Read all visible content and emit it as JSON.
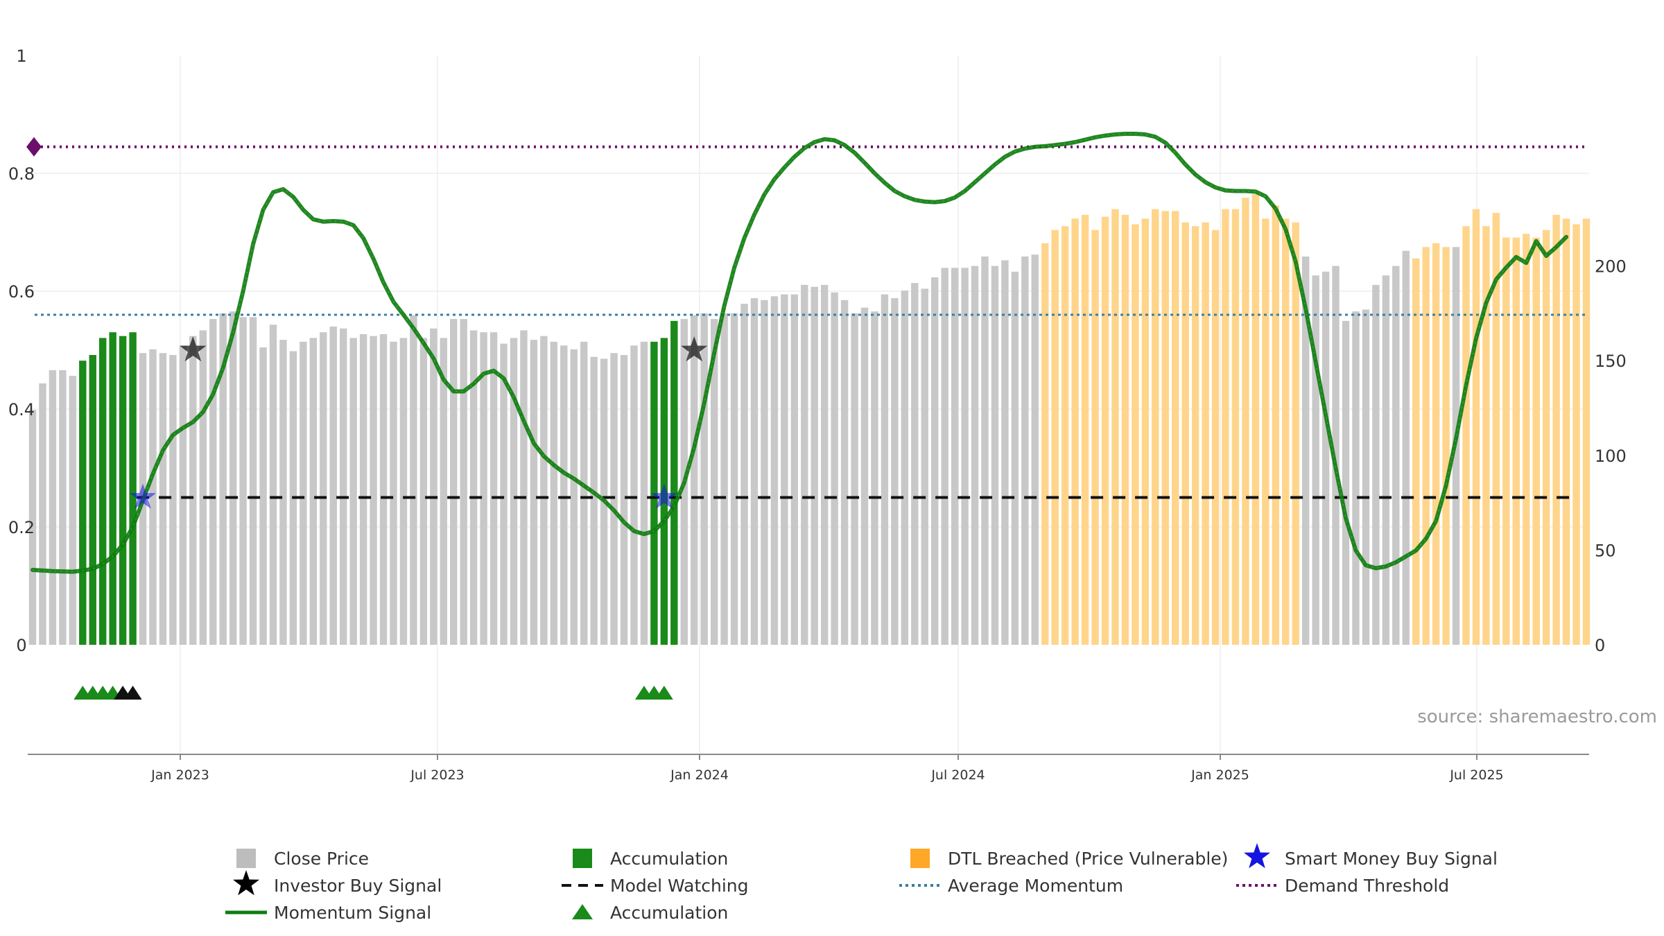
{
  "chart_data": {
    "type": "bar",
    "title": "",
    "xlabel": "",
    "ylabel": "",
    "x_ticks": [
      "Jan 2023",
      "Jul 2023",
      "Jan 2024",
      "Jul 2024",
      "Jan 2025",
      "Jul 2025"
    ],
    "y_left_ticks": [
      "0",
      "0.2",
      "0.4",
      "0.6",
      "0.8",
      "1"
    ],
    "y_right_ticks": [
      "0",
      "50",
      "100",
      "150",
      "200"
    ],
    "y_left_range": [
      0,
      1
    ],
    "y_right_range": [
      0,
      250
    ],
    "source": "source: sharemaestro.com",
    "colors": {
      "close_price": "#c8c8c8",
      "accumulation": "#1a8a1a",
      "dtl_breached": "#ffd58c",
      "momentum": "#0e7d0e",
      "average_momentum": "#3a7fa0",
      "model_watching": "#111111",
      "demand_threshold": "#6b0f6b",
      "smart_money": "#1515e0"
    },
    "bars": [
      124,
      138,
      145,
      145,
      142,
      150,
      153,
      162,
      165,
      163,
      165,
      154,
      156,
      154,
      153,
      158,
      163,
      166,
      172,
      175,
      176,
      173,
      173,
      157,
      169,
      161,
      155,
      160,
      162,
      165,
      168,
      167,
      162,
      164,
      163,
      164,
      160,
      162,
      174,
      162,
      167,
      162,
      172,
      172,
      166,
      165,
      165,
      159,
      162,
      166,
      161,
      163,
      160,
      158,
      156,
      160,
      152,
      151,
      154,
      153,
      158,
      160,
      160,
      162,
      171,
      172,
      174,
      175,
      172,
      175,
      175,
      180,
      183,
      182,
      184,
      185,
      185,
      190,
      189,
      190,
      186,
      182,
      175,
      178,
      176,
      185,
      183,
      187,
      191,
      188,
      194,
      199,
      199,
      199,
      200,
      205,
      200,
      203,
      197,
      205,
      206,
      212,
      219,
      221,
      225,
      227,
      219,
      226,
      230,
      227,
      222,
      225,
      230,
      229,
      229,
      223,
      221,
      223,
      219,
      230,
      230,
      236,
      238,
      225,
      232,
      225,
      223,
      205,
      195,
      197,
      200,
      171,
      176,
      177,
      190,
      195,
      200,
      208,
      204,
      210,
      212,
      210,
      210,
      221,
      230,
      221,
      228,
      215,
      215,
      217,
      215,
      219,
      227,
      225,
      222,
      225
    ],
    "bar_categories": [
      "close",
      "close",
      "close",
      "close",
      "close",
      "accumulation",
      "accumulation",
      "accumulation",
      "accumulation",
      "accumulation",
      "accumulation",
      "close",
      "close",
      "close",
      "close",
      "close",
      "close",
      "close",
      "close",
      "close",
      "close",
      "close",
      "close",
      "close",
      "close",
      "close",
      "close",
      "close",
      "close",
      "close",
      "close",
      "close",
      "close",
      "close",
      "close",
      "close",
      "close",
      "close",
      "close",
      "close",
      "close",
      "close",
      "close",
      "close",
      "close",
      "close",
      "close",
      "close",
      "close",
      "close",
      "close",
      "close",
      "close",
      "close",
      "close",
      "close",
      "close",
      "close",
      "close",
      "close",
      "close",
      "close",
      "accumulation",
      "accumulation",
      "accumulation",
      "close",
      "close",
      "close",
      "close",
      "close",
      "close",
      "close",
      "close",
      "close",
      "close",
      "close",
      "close",
      "close",
      "close",
      "close",
      "close",
      "close",
      "close",
      "close",
      "close",
      "close",
      "close",
      "close",
      "close",
      "close",
      "close",
      "close",
      "close",
      "close",
      "close",
      "close",
      "close",
      "close",
      "close",
      "close",
      "close",
      "close",
      "close",
      "close",
      "close",
      "close",
      "close",
      "close",
      "close",
      "close",
      "close",
      "close",
      "close",
      "close",
      "close",
      "close",
      "close",
      "close",
      "close",
      "close",
      "close",
      "close",
      "close",
      "close",
      "close",
      "close",
      "close",
      "close",
      "close",
      "close",
      "close",
      "close",
      "close",
      "close",
      "close",
      "close",
      "close",
      "close",
      "close",
      "close",
      "close",
      "close",
      "close",
      "close",
      "close",
      "close",
      "close",
      "close",
      "close",
      "close",
      "close",
      "close",
      "close",
      "close",
      "close",
      "close"
    ],
    "dtl_ranges": [
      [
        101,
        126
      ],
      [
        138,
        141
      ],
      [
        143,
        155
      ]
    ],
    "momentum": [
      [
        0,
        0.127
      ],
      [
        2,
        0.125
      ],
      [
        4,
        0.124
      ],
      [
        5,
        0.126
      ],
      [
        6,
        0.129
      ],
      [
        7,
        0.137
      ],
      [
        8,
        0.15
      ],
      [
        9,
        0.17
      ],
      [
        10,
        0.2
      ],
      [
        11,
        0.245
      ],
      [
        12,
        0.29
      ],
      [
        13,
        0.33
      ],
      [
        14,
        0.356
      ],
      [
        15,
        0.368
      ],
      [
        16,
        0.378
      ],
      [
        17,
        0.395
      ],
      [
        18,
        0.425
      ],
      [
        19,
        0.47
      ],
      [
        20,
        0.53
      ],
      [
        21,
        0.6
      ],
      [
        22,
        0.68
      ],
      [
        23,
        0.738
      ],
      [
        24,
        0.768
      ],
      [
        25,
        0.773
      ],
      [
        26,
        0.76
      ],
      [
        27,
        0.738
      ],
      [
        28,
        0.722
      ],
      [
        29,
        0.718
      ],
      [
        30,
        0.719
      ],
      [
        31,
        0.718
      ],
      [
        32,
        0.712
      ],
      [
        33,
        0.69
      ],
      [
        34,
        0.655
      ],
      [
        35,
        0.615
      ],
      [
        36,
        0.582
      ],
      [
        37,
        0.56
      ],
      [
        38,
        0.537
      ],
      [
        39,
        0.512
      ],
      [
        40,
        0.486
      ],
      [
        41,
        0.45
      ],
      [
        42,
        0.43
      ],
      [
        43,
        0.43
      ],
      [
        44,
        0.443
      ],
      [
        45,
        0.46
      ],
      [
        46,
        0.465
      ],
      [
        47,
        0.452
      ],
      [
        48,
        0.42
      ],
      [
        49,
        0.38
      ],
      [
        50,
        0.342
      ],
      [
        51,
        0.32
      ],
      [
        52,
        0.305
      ],
      [
        53,
        0.292
      ],
      [
        54,
        0.282
      ],
      [
        55,
        0.27
      ],
      [
        56,
        0.258
      ],
      [
        57,
        0.245
      ],
      [
        58,
        0.228
      ],
      [
        59,
        0.208
      ],
      [
        60,
        0.193
      ],
      [
        61,
        0.188
      ],
      [
        62,
        0.193
      ],
      [
        63,
        0.21
      ],
      [
        64,
        0.235
      ],
      [
        65,
        0.275
      ],
      [
        66,
        0.335
      ],
      [
        67,
        0.41
      ],
      [
        68,
        0.495
      ],
      [
        69,
        0.575
      ],
      [
        70,
        0.64
      ],
      [
        71,
        0.69
      ],
      [
        72,
        0.73
      ],
      [
        73,
        0.764
      ],
      [
        74,
        0.79
      ],
      [
        75,
        0.81
      ],
      [
        76,
        0.828
      ],
      [
        77,
        0.843
      ],
      [
        78,
        0.853
      ],
      [
        79,
        0.858
      ],
      [
        80,
        0.856
      ],
      [
        81,
        0.848
      ],
      [
        82,
        0.835
      ],
      [
        83,
        0.818
      ],
      [
        84,
        0.8
      ],
      [
        85,
        0.784
      ],
      [
        86,
        0.77
      ],
      [
        87,
        0.761
      ],
      [
        88,
        0.755
      ],
      [
        89,
        0.752
      ],
      [
        90,
        0.751
      ],
      [
        91,
        0.753
      ],
      [
        92,
        0.759
      ],
      [
        93,
        0.77
      ],
      [
        94,
        0.785
      ],
      [
        95,
        0.8
      ],
      [
        96,
        0.815
      ],
      [
        97,
        0.828
      ],
      [
        98,
        0.837
      ],
      [
        99,
        0.842
      ],
      [
        100,
        0.845
      ],
      [
        101,
        0.846
      ],
      [
        102,
        0.848
      ],
      [
        103,
        0.85
      ],
      [
        104,
        0.853
      ],
      [
        105,
        0.857
      ],
      [
        106,
        0.861
      ],
      [
        107,
        0.864
      ],
      [
        108,
        0.866
      ],
      [
        109,
        0.867
      ],
      [
        110,
        0.867
      ],
      [
        111,
        0.866
      ],
      [
        112,
        0.862
      ],
      [
        113,
        0.852
      ],
      [
        114,
        0.835
      ],
      [
        115,
        0.815
      ],
      [
        116,
        0.798
      ],
      [
        117,
        0.785
      ],
      [
        118,
        0.776
      ],
      [
        119,
        0.771
      ],
      [
        120,
        0.77
      ],
      [
        121,
        0.77
      ],
      [
        122,
        0.769
      ],
      [
        123,
        0.761
      ],
      [
        124,
        0.74
      ],
      [
        125,
        0.705
      ],
      [
        126,
        0.65
      ],
      [
        127,
        0.57
      ],
      [
        128,
        0.48
      ],
      [
        129,
        0.39
      ],
      [
        130,
        0.3
      ],
      [
        131,
        0.215
      ],
      [
        132,
        0.16
      ],
      [
        133,
        0.135
      ],
      [
        134,
        0.13
      ],
      [
        135,
        0.133
      ],
      [
        136,
        0.14
      ],
      [
        137,
        0.15
      ],
      [
        138,
        0.16
      ],
      [
        139,
        0.18
      ],
      [
        140,
        0.21
      ],
      [
        141,
        0.27
      ],
      [
        142,
        0.35
      ],
      [
        143,
        0.44
      ],
      [
        144,
        0.52
      ],
      [
        145,
        0.58
      ],
      [
        146,
        0.62
      ],
      [
        147,
        0.64
      ],
      [
        148,
        0.658
      ],
      [
        149,
        0.648
      ],
      [
        150,
        0.685
      ],
      [
        151,
        0.66
      ],
      [
        152,
        0.675
      ],
      [
        153,
        0.692
      ]
    ],
    "average_momentum": 0.56,
    "model_watching": 0.25,
    "model_watching_start": 9,
    "demand_threshold": 0.845,
    "investor_buy_signals": [
      [
        16,
        0.5
      ],
      [
        66,
        0.5
      ]
    ],
    "smart_money_buy_signals": [
      [
        11,
        0.25
      ],
      [
        63,
        0.25
      ]
    ],
    "accumulation_markers_green": [
      5,
      6,
      7,
      8,
      61,
      62,
      63
    ],
    "accumulation_markers_black": [
      9,
      10
    ],
    "legend": [
      {
        "key": "close_price",
        "label": "Close Price"
      },
      {
        "key": "accumulation_bar",
        "label": "Accumulation"
      },
      {
        "key": "dtl",
        "label": "DTL Breached (Price Vulnerable)"
      },
      {
        "key": "smart_money",
        "label": "Smart Money Buy Signal"
      },
      {
        "key": "investor",
        "label": "Investor Buy Signal"
      },
      {
        "key": "model_watching",
        "label": "Model Watching"
      },
      {
        "key": "average_momentum",
        "label": "Average Momentum"
      },
      {
        "key": "demand_threshold",
        "label": "Demand Threshold"
      },
      {
        "key": "momentum",
        "label": "Momentum Signal"
      },
      {
        "key": "accumulation_marker",
        "label": "Accumulation"
      }
    ]
  }
}
